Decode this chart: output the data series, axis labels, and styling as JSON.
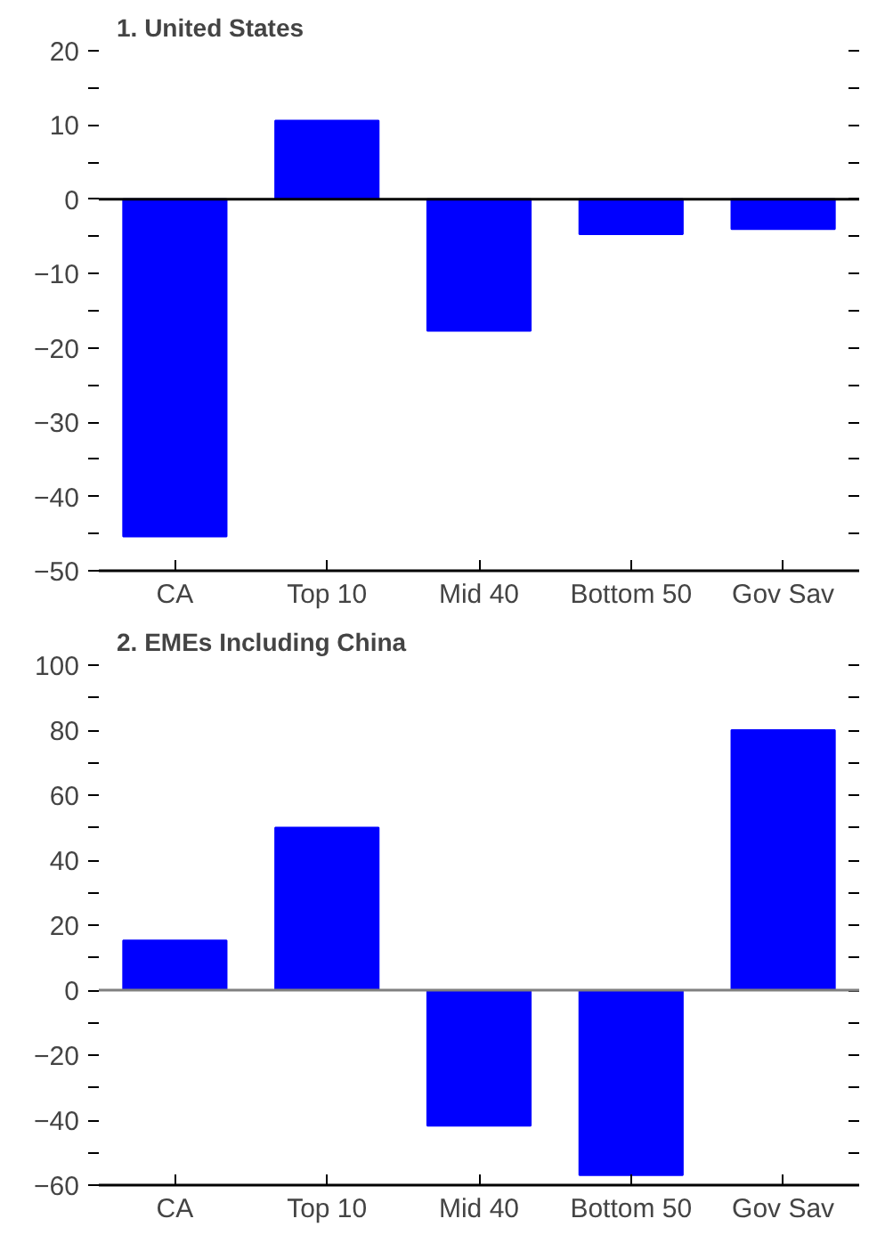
{
  "chart_data": [
    {
      "type": "bar",
      "title": "1. United States",
      "categories": [
        "CA",
        "Top 10",
        "Mid 40",
        "Bottom 50",
        "Gov Sav"
      ],
      "values": [
        -45.4,
        10.6,
        -17.7,
        -4.7,
        -4.0
      ],
      "color": "#0000ff",
      "ylim": [
        -50,
        20
      ],
      "yticks": [
        {
          "value": -50,
          "label": "−50"
        },
        {
          "value": -45,
          "label": null
        },
        {
          "value": -40,
          "label": "−40"
        },
        {
          "value": -35,
          "label": null
        },
        {
          "value": -30,
          "label": "−30"
        },
        {
          "value": -25,
          "label": null
        },
        {
          "value": -20,
          "label": "−20"
        },
        {
          "value": -15,
          "label": null
        },
        {
          "value": -10,
          "label": "−10"
        },
        {
          "value": -5,
          "label": null
        },
        0,
        {
          "value": 5,
          "label": null
        },
        10,
        {
          "value": 15,
          "label": null
        },
        20
      ],
      "ref_lines": [
        {
          "axis": "y",
          "value": 0,
          "color": "#000000"
        }
      ],
      "grid": false
    },
    {
      "type": "bar",
      "title": "2. EMEs Including China",
      "categories": [
        "CA",
        "Top 10",
        "Mid 40",
        "Bottom 50",
        "Gov Sav"
      ],
      "values": [
        15.3,
        50,
        -41.7,
        -56.9,
        80
      ],
      "color": "#0000ff",
      "ylim": [
        -60,
        100
      ],
      "yticks": [
        {
          "value": -60,
          "label": "−60"
        },
        {
          "value": -50,
          "label": null
        },
        {
          "value": -40,
          "label": "−40"
        },
        {
          "value": -30,
          "label": null
        },
        {
          "value": -20,
          "label": "−20"
        },
        {
          "value": -10,
          "label": null
        },
        0,
        {
          "value": 10,
          "label": null
        },
        20,
        {
          "value": 30,
          "label": null
        },
        40,
        {
          "value": 50,
          "label": null
        },
        60,
        {
          "value": 70,
          "label": null
        },
        80,
        {
          "value": 90,
          "label": null
        },
        100
      ],
      "ref_lines": [
        {
          "axis": "y",
          "value": 0,
          "color": "#808080"
        }
      ],
      "grid": false
    }
  ]
}
